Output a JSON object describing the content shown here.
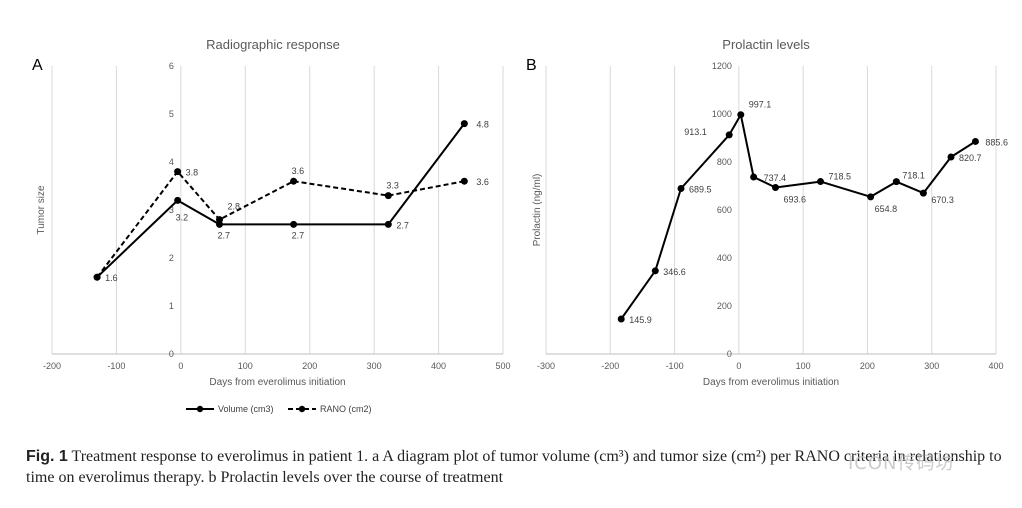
{
  "chart_data": [
    {
      "type": "line",
      "panel_label": "A",
      "title": "Radiographic response",
      "xlabel": "Days from everolimus initiation",
      "ylabel": "Tumor size",
      "xlim": [
        -200,
        500
      ],
      "ylim": [
        0,
        6
      ],
      "x_ticks": [
        -200,
        -100,
        0,
        100,
        200,
        300,
        400,
        500
      ],
      "y_ticks": [
        0,
        1,
        2,
        3,
        4,
        5,
        6
      ],
      "grid": "vertical",
      "legend": "bottom",
      "series": [
        {
          "name": "Volume (cm3)",
          "style": "solid",
          "color": "#000000",
          "points": [
            {
              "x": -130,
              "y": 1.6,
              "label": "1.6"
            },
            {
              "x": -5,
              "y": 3.2,
              "label": "3.2"
            },
            {
              "x": 60,
              "y": 2.7,
              "label": "2.7"
            },
            {
              "x": 175,
              "y": 2.7,
              "label": "2.7"
            },
            {
              "x": 322,
              "y": 2.7,
              "label": "2.7"
            },
            {
              "x": 440,
              "y": 4.8,
              "label": "4.8"
            }
          ]
        },
        {
          "name": "RANO (cm2)",
          "style": "dashed",
          "color": "#000000",
          "points": [
            {
              "x": -130,
              "y": 1.6,
              "label": ""
            },
            {
              "x": -5,
              "y": 3.8,
              "label": "3.8"
            },
            {
              "x": 60,
              "y": 2.8,
              "label": "2.8"
            },
            {
              "x": 175,
              "y": 3.6,
              "label": "3.6"
            },
            {
              "x": 322,
              "y": 3.3,
              "label": "3.3"
            },
            {
              "x": 440,
              "y": 3.6,
              "label": "3.6"
            }
          ]
        }
      ]
    },
    {
      "type": "line",
      "panel_label": "B",
      "title": "Prolactin levels",
      "xlabel": "Days from everolimus initiation",
      "ylabel": "Prolactin (ng/ml)",
      "xlim": [
        -300,
        400
      ],
      "ylim": [
        0,
        1200
      ],
      "x_ticks": [
        -300,
        -200,
        -100,
        0,
        100,
        200,
        300,
        400
      ],
      "y_ticks": [
        0,
        200,
        400,
        600,
        800,
        1000,
        1200
      ],
      "grid": "vertical",
      "series": [
        {
          "name": "",
          "style": "solid",
          "color": "#000000",
          "points": [
            {
              "x": -183,
              "y": 145.9,
              "label": "145.9"
            },
            {
              "x": -130,
              "y": 346.6,
              "label": "346.6"
            },
            {
              "x": -90,
              "y": 689.5,
              "label": "689.5"
            },
            {
              "x": -15,
              "y": 913.1,
              "label": "913.1"
            },
            {
              "x": 3,
              "y": 997.1,
              "label": "997.1"
            },
            {
              "x": 23,
              "y": 737.4,
              "label": "737.4"
            },
            {
              "x": 57,
              "y": 693.6,
              "label": "693.6"
            },
            {
              "x": 127,
              "y": 718.5,
              "label": "718.5"
            },
            {
              "x": 205,
              "y": 654.8,
              "label": "654.8"
            },
            {
              "x": 245,
              "y": 718.1,
              "label": "718.1"
            },
            {
              "x": 287,
              "y": 670.3,
              "label": "670.3"
            },
            {
              "x": 330,
              "y": 820.7,
              "label": "820.7"
            },
            {
              "x": 368,
              "y": 885.6,
              "label": "885.6"
            }
          ]
        }
      ]
    }
  ],
  "caption": {
    "fig_label": "Fig. 1",
    "text": " Treatment response to everolimus in patient 1. a A diagram plot of tumor volume (cm³) and tumor size (cm²) per RANO criteria in relationship to time on everolimus therapy. b Prolactin levels over the course of treatment"
  },
  "watermark": "ICON传码坊"
}
